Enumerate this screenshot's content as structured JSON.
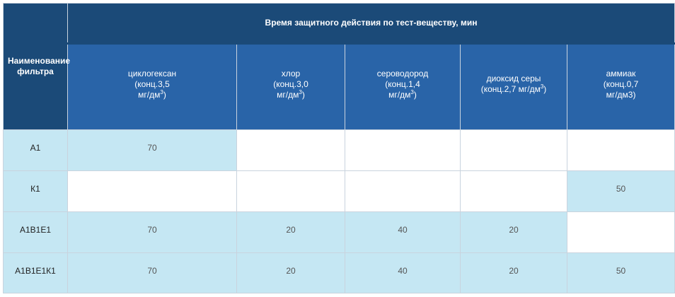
{
  "table": {
    "corner_header": "Наименование фильтра",
    "group_header": "Время защитного действия по тест-веществу, мин",
    "columns": [
      {
        "name": "циклогексан",
        "line2": "(конц.3,5",
        "line3": "мг/дм",
        "sup": "3",
        "tail": ")"
      },
      {
        "name": "хлор",
        "line2": "(конц.3,0",
        "line3": "мг/дм",
        "sup": "3",
        "tail": ")"
      },
      {
        "name": "сероводород",
        "line2": "(конц.1,4",
        "line3": "мг/дм",
        "sup": "3",
        "tail": ")"
      },
      {
        "name": "диоксид серы",
        "line2": "(конц.2,7 мг/дм",
        "line3": "",
        "sup": "3",
        "tail": ")"
      },
      {
        "name": "аммиак",
        "line2": "(конц.0,7",
        "line3": "мг/дм3)",
        "sup": "",
        "tail": ""
      }
    ],
    "rows": [
      {
        "name": "А1",
        "values": [
          "70",
          "",
          "",
          "",
          ""
        ]
      },
      {
        "name": "К1",
        "values": [
          "",
          "",
          "",
          "",
          "50"
        ]
      },
      {
        "name": "А1В1Е1",
        "values": [
          "70",
          "20",
          "40",
          "20",
          ""
        ]
      },
      {
        "name": "А1В1Е1К1",
        "values": [
          "70",
          "20",
          "40",
          "20",
          "50"
        ]
      }
    ]
  }
}
